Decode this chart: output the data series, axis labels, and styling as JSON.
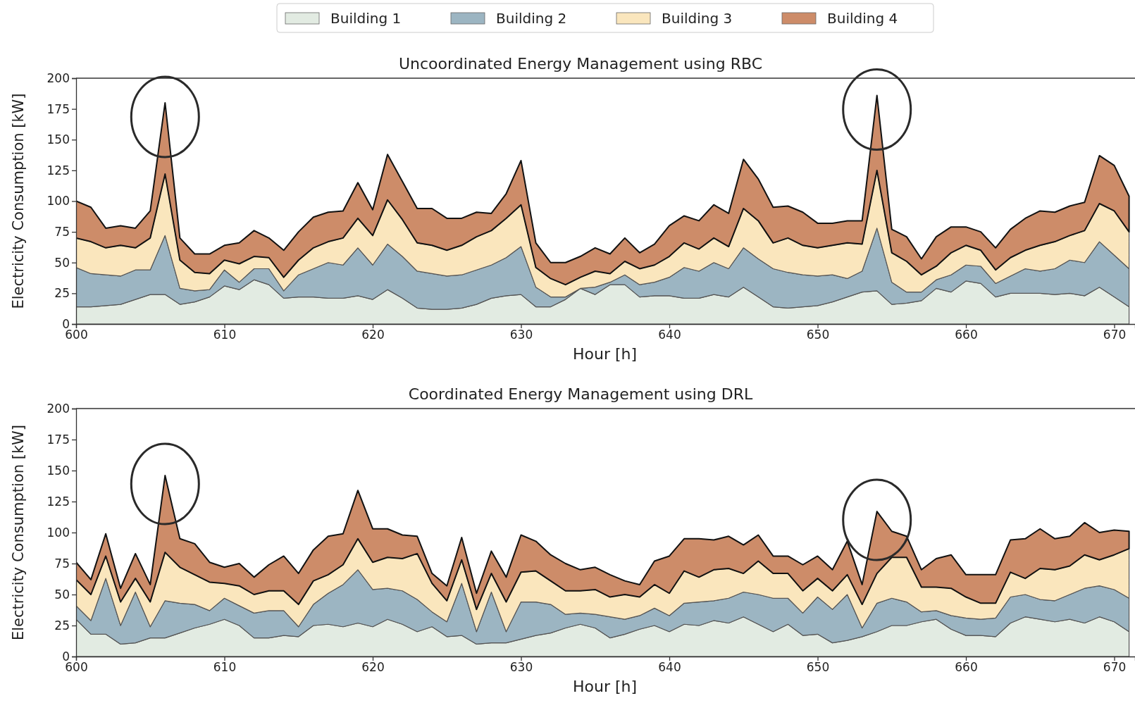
{
  "chart_data": [
    {
      "type": "area",
      "stacked": true,
      "title": "Uncoordinated Energy Management using RBC",
      "xlabel": "Hour [h]",
      "ylabel": "Electricity Consumption [kW]",
      "x": [
        600,
        601,
        602,
        603,
        604,
        605,
        606,
        607,
        608,
        609,
        610,
        611,
        612,
        613,
        614,
        615,
        616,
        617,
        618,
        619,
        620,
        621,
        622,
        623,
        624,
        625,
        626,
        627,
        628,
        629,
        630,
        631,
        632,
        633,
        634,
        635,
        636,
        637,
        638,
        639,
        640,
        641,
        642,
        643,
        644,
        645,
        646,
        647,
        648,
        649,
        650,
        651,
        652,
        653,
        654,
        655,
        656,
        657,
        658,
        659,
        660,
        661,
        662,
        663,
        664,
        665,
        666,
        667,
        668,
        669,
        670,
        671
      ],
      "xlim": [
        600,
        671.4
      ],
      "xticks": [
        600,
        610,
        620,
        630,
        640,
        650,
        660,
        670
      ],
      "ylim": [
        0,
        200
      ],
      "yticks": [
        0,
        25,
        50,
        75,
        100,
        125,
        150,
        175,
        200
      ],
      "legend": "top",
      "series": [
        {
          "name": "Building 1",
          "color": "#e2ebe2",
          "values": [
            14,
            14,
            15,
            16,
            20,
            24,
            24,
            16,
            18,
            22,
            31,
            28,
            36,
            32,
            21,
            22,
            22,
            21,
            21,
            23,
            20,
            28,
            21,
            13,
            12,
            12,
            13,
            16,
            21,
            23,
            24,
            14,
            14,
            20,
            29,
            24,
            32,
            32,
            22,
            23,
            23,
            21,
            21,
            24,
            22,
            30,
            22,
            14,
            13,
            14,
            15,
            18,
            22,
            26,
            27,
            16,
            17,
            19,
            29,
            26,
            35,
            33,
            22,
            25,
            25,
            25,
            24,
            25,
            23,
            30,
            22,
            14
          ]
        },
        {
          "name": "Building 2",
          "color": "#9cb5c2",
          "values": [
            32,
            27,
            25,
            23,
            24,
            20,
            48,
            13,
            9,
            6,
            13,
            6,
            9,
            13,
            6,
            18,
            23,
            29,
            27,
            39,
            28,
            37,
            34,
            30,
            29,
            27,
            27,
            28,
            27,
            31,
            39,
            16,
            8,
            2,
            0,
            6,
            2,
            8,
            10,
            11,
            15,
            25,
            22,
            26,
            23,
            32,
            31,
            31,
            29,
            26,
            24,
            22,
            15,
            17,
            51,
            18,
            9,
            7,
            7,
            14,
            13,
            14,
            11,
            14,
            20,
            18,
            21,
            27,
            27,
            37,
            34,
            31
          ]
        },
        {
          "name": "Building 3",
          "color": "#fae6bd",
          "values": [
            24,
            26,
            22,
            25,
            18,
            26,
            50,
            23,
            15,
            13,
            8,
            15,
            10,
            9,
            11,
            12,
            17,
            17,
            22,
            24,
            24,
            36,
            30,
            23,
            23,
            21,
            24,
            27,
            28,
            32,
            34,
            16,
            15,
            10,
            9,
            13,
            7,
            11,
            13,
            14,
            17,
            20,
            18,
            20,
            18,
            32,
            31,
            21,
            28,
            24,
            23,
            24,
            29,
            22,
            47,
            24,
            25,
            14,
            11,
            18,
            16,
            13,
            11,
            15,
            15,
            21,
            22,
            20,
            26,
            31,
            36,
            30
          ]
        },
        {
          "name": "Building 4",
          "color": "#cd8c69",
          "values": [
            30,
            28,
            16,
            16,
            16,
            22,
            58,
            18,
            15,
            16,
            12,
            17,
            21,
            16,
            22,
            23,
            25,
            24,
            22,
            29,
            21,
            37,
            31,
            28,
            30,
            26,
            22,
            20,
            14,
            20,
            36,
            20,
            13,
            18,
            17,
            19,
            16,
            19,
            13,
            17,
            25,
            22,
            23,
            27,
            27,
            40,
            34,
            29,
            26,
            27,
            20,
            18,
            18,
            19,
            61,
            19,
            20,
            13,
            24,
            21,
            15,
            15,
            18,
            23,
            26,
            28,
            24,
            24,
            23,
            39,
            37,
            29
          ]
        }
      ]
    },
    {
      "type": "area",
      "stacked": true,
      "title": "Coordinated Energy Management using DRL",
      "xlabel": "Hour [h]",
      "ylabel": "Electricity Consumption [kW]",
      "x": [
        600,
        601,
        602,
        603,
        604,
        605,
        606,
        607,
        608,
        609,
        610,
        611,
        612,
        613,
        614,
        615,
        616,
        617,
        618,
        619,
        620,
        621,
        622,
        623,
        624,
        625,
        626,
        627,
        628,
        629,
        630,
        631,
        632,
        633,
        634,
        635,
        636,
        637,
        638,
        639,
        640,
        641,
        642,
        643,
        644,
        645,
        646,
        647,
        648,
        649,
        650,
        651,
        652,
        653,
        654,
        655,
        656,
        657,
        658,
        659,
        660,
        661,
        662,
        663,
        664,
        665,
        666,
        667,
        668,
        669,
        670,
        671
      ],
      "xlim": [
        600,
        671.4
      ],
      "xticks": [
        600,
        610,
        620,
        630,
        640,
        650,
        660,
        670
      ],
      "ylim": [
        0,
        200
      ],
      "yticks": [
        0,
        25,
        50,
        75,
        100,
        125,
        150,
        175,
        200
      ],
      "series": [
        {
          "color": "#e2ebe2",
          "values": [
            30,
            18,
            18,
            10,
            11,
            15,
            15,
            19,
            23,
            26,
            30,
            25,
            15,
            15,
            17,
            16,
            25,
            26,
            24,
            27,
            24,
            30,
            26,
            20,
            24,
            16,
            17,
            10,
            11,
            11,
            14,
            17,
            19,
            23,
            26,
            23,
            15,
            18,
            22,
            25,
            20,
            26,
            25,
            29,
            27,
            32,
            26,
            20,
            26,
            17,
            18,
            11,
            13,
            16,
            20,
            25,
            25,
            28,
            30,
            22,
            17,
            17,
            16,
            27,
            32,
            30,
            28,
            30,
            27,
            32,
            28,
            20
          ]
        },
        {
          "color": "#9cb5c2",
          "values": [
            11,
            11,
            45,
            15,
            41,
            9,
            30,
            24,
            19,
            11,
            17,
            16,
            20,
            22,
            20,
            8,
            17,
            25,
            34,
            43,
            30,
            25,
            27,
            26,
            12,
            12,
            42,
            10,
            41,
            9,
            30,
            27,
            23,
            11,
            9,
            11,
            17,
            12,
            11,
            14,
            13,
            17,
            19,
            16,
            20,
            20,
            24,
            27,
            21,
            18,
            30,
            27,
            37,
            7,
            23,
            22,
            19,
            8,
            7,
            11,
            14,
            13,
            15,
            21,
            18,
            16,
            17,
            20,
            28,
            25,
            26,
            27
          ]
        },
        {
          "color": "#fae6bd",
          "values": [
            21,
            21,
            18,
            19,
            11,
            20,
            39,
            29,
            24,
            23,
            12,
            16,
            15,
            16,
            16,
            18,
            19,
            15,
            16,
            25,
            22,
            25,
            26,
            37,
            23,
            17,
            19,
            18,
            15,
            24,
            24,
            25,
            19,
            19,
            18,
            20,
            16,
            20,
            15,
            19,
            18,
            26,
            20,
            25,
            24,
            15,
            27,
            20,
            20,
            18,
            15,
            15,
            16,
            19,
            24,
            33,
            36,
            20,
            19,
            22,
            17,
            13,
            12,
            20,
            13,
            25,
            25,
            23,
            27,
            21,
            28,
            40
          ]
        },
        {
          "color": "#cd8c69",
          "values": [
            14,
            12,
            18,
            11,
            20,
            14,
            62,
            23,
            25,
            16,
            13,
            18,
            14,
            21,
            28,
            25,
            25,
            31,
            25,
            39,
            27,
            23,
            19,
            14,
            8,
            12,
            18,
            13,
            18,
            20,
            30,
            24,
            21,
            22,
            17,
            18,
            18,
            11,
            10,
            19,
            30,
            26,
            31,
            24,
            26,
            23,
            21,
            14,
            14,
            21,
            18,
            17,
            27,
            16,
            50,
            21,
            17,
            14,
            23,
            27,
            18,
            23,
            23,
            26,
            32,
            32,
            25,
            24,
            26,
            22,
            20,
            14
          ]
        }
      ]
    }
  ]
}
